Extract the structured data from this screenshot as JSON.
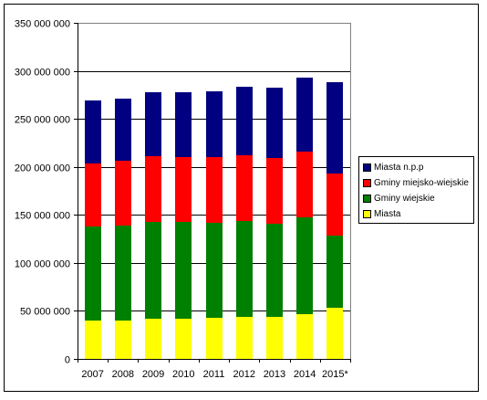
{
  "chart_data": {
    "type": "bar",
    "stacked": true,
    "categories": [
      "2007",
      "2008",
      "2009",
      "2010",
      "2011",
      "2012",
      "2013",
      "2014",
      "2015*"
    ],
    "series": [
      {
        "name": "Miasta",
        "color": "#FFFF00",
        "values": [
          40000000,
          40000000,
          42000000,
          42000000,
          43000000,
          44000000,
          44000000,
          47000000,
          53000000
        ]
      },
      {
        "name": "Gminy wiejskie",
        "color": "#008000",
        "values": [
          98000000,
          99000000,
          101000000,
          101000000,
          99000000,
          100000000,
          97000000,
          100000000,
          75000000
        ]
      },
      {
        "name": "Gminy miejsko-wiejskie",
        "color": "#FF0000",
        "values": [
          66000000,
          67000000,
          68000000,
          67000000,
          68000000,
          68000000,
          68000000,
          69000000,
          65000000
        ]
      },
      {
        "name": "Miasta n.p.p",
        "color": "#000080",
        "values": [
          65000000,
          65000000,
          67000000,
          68000000,
          69000000,
          71000000,
          73000000,
          77000000,
          95000000
        ]
      }
    ],
    "legend_order": [
      "Miasta n.p.p",
      "Gminy miejsko-wiejskie",
      "Gminy wiejskie",
      "Miasta"
    ],
    "ylim": [
      0,
      350000000
    ],
    "yticks": [
      0,
      50000000,
      100000000,
      150000000,
      200000000,
      250000000,
      300000000,
      350000000
    ],
    "ytick_labels": [
      "0",
      "50 000 000",
      "100 000 000",
      "150 000 000",
      "200 000 000",
      "250 000 000",
      "300 000 000",
      "350 000 000"
    ],
    "grid": true,
    "legend_position": "right",
    "title": "",
    "xlabel": "",
    "ylabel": ""
  }
}
